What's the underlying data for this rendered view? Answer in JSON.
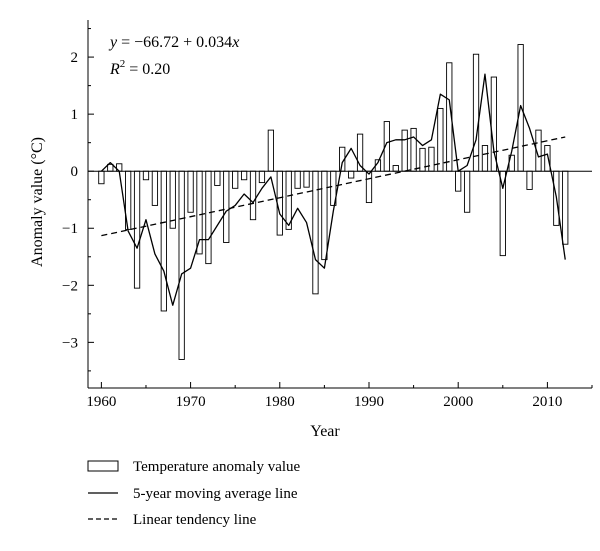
{
  "chart_data": {
    "type": "bar",
    "xlabel": "Year",
    "ylabel": "Anomaly value (°C)",
    "xlim": [
      1958.5,
      2015
    ],
    "ylim": [
      -3.8,
      2.65
    ],
    "x_ticks": [
      1960,
      1970,
      1980,
      1990,
      2000,
      2010
    ],
    "y_ticks": [
      -3,
      -2,
      -1,
      0,
      1,
      2
    ],
    "grid": false,
    "legend_position": "bottom",
    "annotation": {
      "equation": {
        "y": "y",
        "eq": " = −66.72 + 0.034",
        "x": "x"
      },
      "r2": {
        "r": "R",
        "sup": "2",
        "val": " = 0.20"
      }
    },
    "series": [
      {
        "name": "Temperature anomaly value",
        "type": "bar",
        "x": [
          1960,
          1961,
          1962,
          1963,
          1964,
          1965,
          1966,
          1967,
          1968,
          1969,
          1970,
          1971,
          1972,
          1973,
          1974,
          1975,
          1976,
          1977,
          1978,
          1979,
          1980,
          1981,
          1982,
          1983,
          1984,
          1985,
          1986,
          1987,
          1988,
          1989,
          1990,
          1991,
          1992,
          1993,
          1994,
          1995,
          1996,
          1997,
          1998,
          1999,
          2000,
          2001,
          2002,
          2003,
          2004,
          2005,
          2006,
          2007,
          2008,
          2009,
          2010,
          2011,
          2012
        ],
        "values": [
          -0.22,
          0.12,
          0.13,
          -1.02,
          -2.05,
          -0.15,
          -0.6,
          -2.45,
          -1.0,
          -3.3,
          -0.72,
          -1.45,
          -1.62,
          -0.25,
          -1.25,
          -0.3,
          -0.15,
          -0.85,
          -0.2,
          0.72,
          -1.12,
          -1.02,
          -0.3,
          -0.28,
          -2.15,
          -1.55,
          -0.6,
          0.42,
          -0.12,
          0.65,
          -0.55,
          0.2,
          0.87,
          0.1,
          0.72,
          0.75,
          0.4,
          0.42,
          1.1,
          1.9,
          -0.35,
          -0.72,
          2.05,
          0.45,
          1.65,
          -1.48,
          0.28,
          2.22,
          -0.32,
          0.72,
          0.45,
          -0.95,
          -1.28
        ]
      },
      {
        "name": "5-year moving average line",
        "type": "line",
        "style": "solid",
        "x": [
          1960,
          1961,
          1962,
          1963,
          1964,
          1965,
          1966,
          1967,
          1968,
          1969,
          1970,
          1971,
          1972,
          1973,
          1974,
          1975,
          1976,
          1977,
          1978,
          1979,
          1980,
          1981,
          1982,
          1983,
          1984,
          1985,
          1986,
          1987,
          1988,
          1989,
          1990,
          1991,
          1992,
          1993,
          1994,
          1995,
          1996,
          1997,
          1998,
          1999,
          2000,
          2001,
          2002,
          2003,
          2004,
          2005,
          2006,
          2007,
          2008,
          2009,
          2010,
          2011,
          2012
        ],
        "values": [
          0.0,
          0.15,
          0.0,
          -1.05,
          -1.35,
          -0.85,
          -1.45,
          -1.75,
          -2.35,
          -1.8,
          -1.7,
          -1.2,
          -1.2,
          -0.95,
          -0.7,
          -0.6,
          -0.4,
          -0.55,
          -0.3,
          -0.1,
          -0.75,
          -0.95,
          -0.65,
          -0.9,
          -1.55,
          -1.7,
          -0.7,
          0.15,
          0.4,
          0.1,
          -0.05,
          0.15,
          0.5,
          0.55,
          0.55,
          0.6,
          0.45,
          0.55,
          1.35,
          1.25,
          0.0,
          0.1,
          0.55,
          1.7,
          0.35,
          -0.3,
          0.35,
          1.15,
          0.75,
          0.25,
          0.3,
          -0.45,
          -1.55
        ]
      },
      {
        "name": "Linear tendency line",
        "type": "line",
        "style": "dashed",
        "x": [
          1960,
          2012
        ],
        "values": [
          -1.13,
          0.6
        ]
      }
    ]
  }
}
